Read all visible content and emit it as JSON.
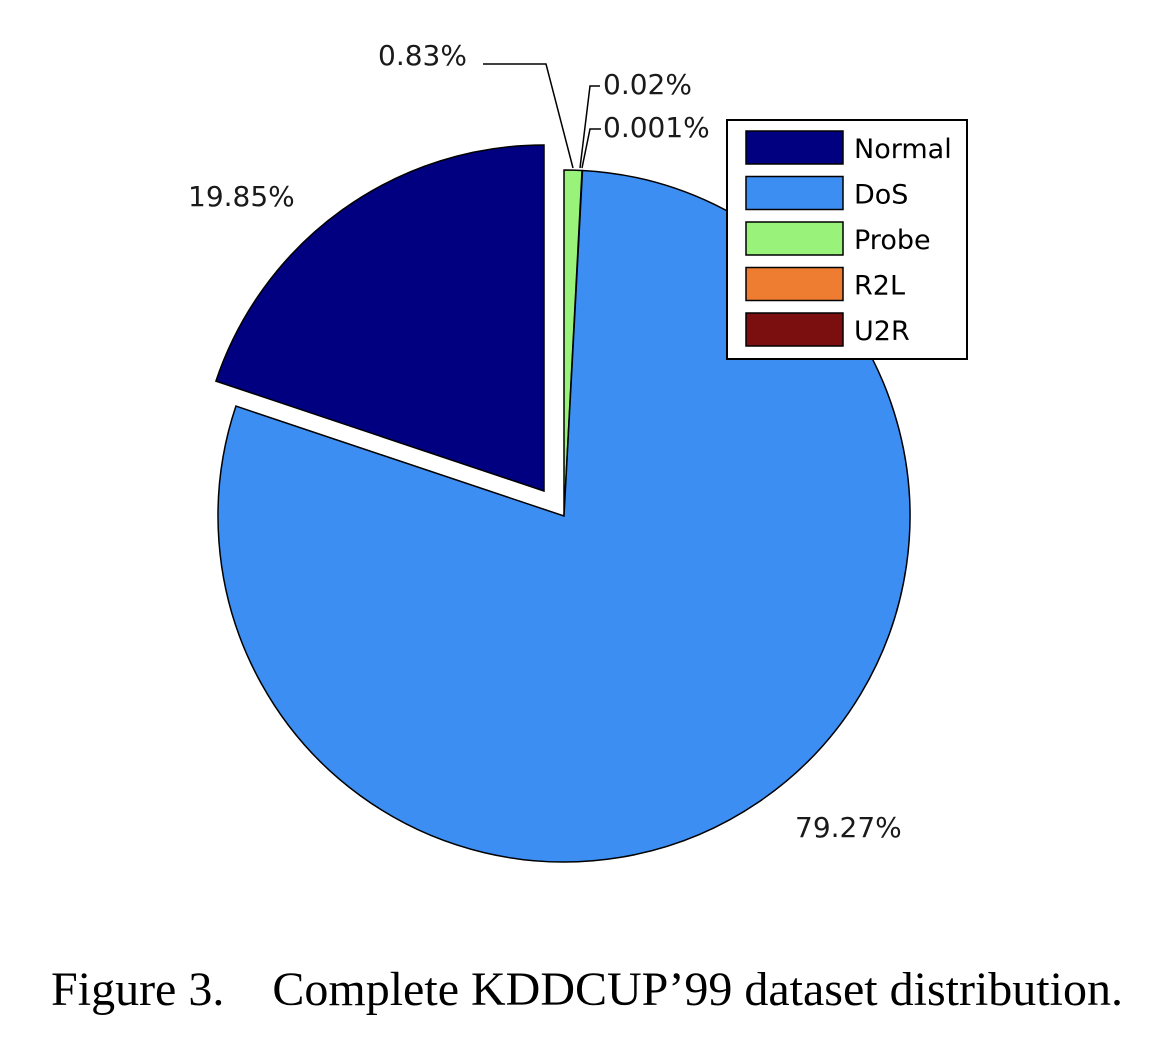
{
  "chart_data": {
    "type": "pie",
    "slices": [
      {
        "label": "Normal",
        "value": 19.85,
        "display": "19.85%",
        "color": "#000080",
        "exploded": true
      },
      {
        "label": "DoS",
        "value": 79.27,
        "display": "79.27%",
        "color": "#3d8ef2",
        "exploded": false
      },
      {
        "label": "Probe",
        "value": 0.83,
        "display": "0.83%",
        "color": "#99f27a",
        "exploded": false
      },
      {
        "label": "R2L",
        "value": 0.02,
        "display": "0.02%",
        "color": "#ee7d32",
        "exploded": false
      },
      {
        "label": "U2R",
        "value": 0.001,
        "display": "0.001%",
        "color": "#7b0f0f",
        "exploded": false
      }
    ],
    "legend": {
      "placement": "top-right",
      "entries": [
        "Normal",
        "DoS",
        "Probe",
        "R2L",
        "U2R"
      ]
    }
  },
  "caption": {
    "figure_label": "Figure 3.",
    "text": "Complete KDDCUP’99 dataset distribution."
  }
}
